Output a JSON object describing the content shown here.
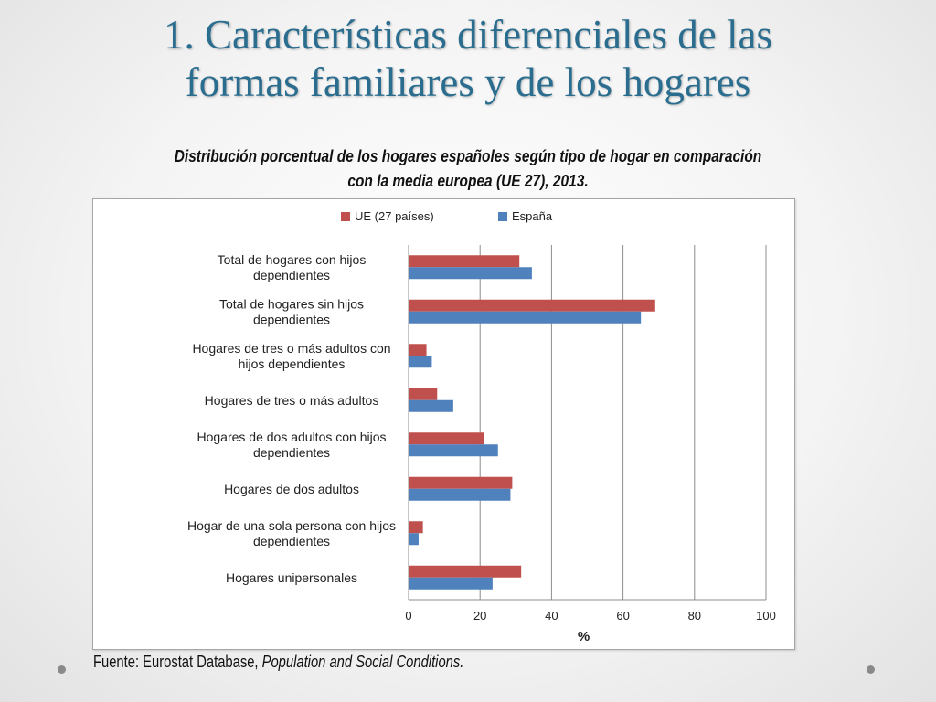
{
  "slide": {
    "title_line1": "1. Características diferenciales de las",
    "title_line2": "formas familiares y de los hogares",
    "heading_line1": "Distribución porcentual de los hogares españoles según tipo de hogar en comparación",
    "heading_line2": "con la media europea (UE 27), 2013.",
    "source_prefix": "Fuente: Eurostat Database, ",
    "source_italic": "Population and Social Conditions."
  },
  "chart_data": {
    "type": "bar",
    "orientation": "horizontal",
    "categories": [
      [
        "Total de hogares con hijos",
        "dependientes"
      ],
      [
        "Total de hogares sin hijos",
        "dependientes"
      ],
      [
        "Hogares de tres o más adultos con",
        "hijos dependientes"
      ],
      [
        "Hogares de tres o más adultos"
      ],
      [
        "Hogares de dos adultos con hijos",
        "dependientes"
      ],
      [
        "Hogares de dos adultos"
      ],
      [
        "Hogar de una sola persona con hijos",
        "dependientes"
      ],
      [
        "Hogares unipersonales"
      ]
    ],
    "series": [
      {
        "name": "UE (27 países)",
        "color": "#c0504d",
        "values": [
          31,
          69,
          5,
          8,
          21,
          29,
          4,
          31.5
        ]
      },
      {
        "name": "España",
        "color": "#4f81bd",
        "values": [
          34.5,
          65,
          6.5,
          12.5,
          25,
          28.5,
          2.8,
          23.5
        ]
      }
    ],
    "xlim": [
      0,
      100
    ],
    "xticks": [
      0,
      20,
      40,
      60,
      80,
      100
    ],
    "xlabel": "%",
    "grid": true,
    "legend_position": "top"
  },
  "colors": {
    "title": "#2a6d8f",
    "grid": "#8c8c8c"
  }
}
